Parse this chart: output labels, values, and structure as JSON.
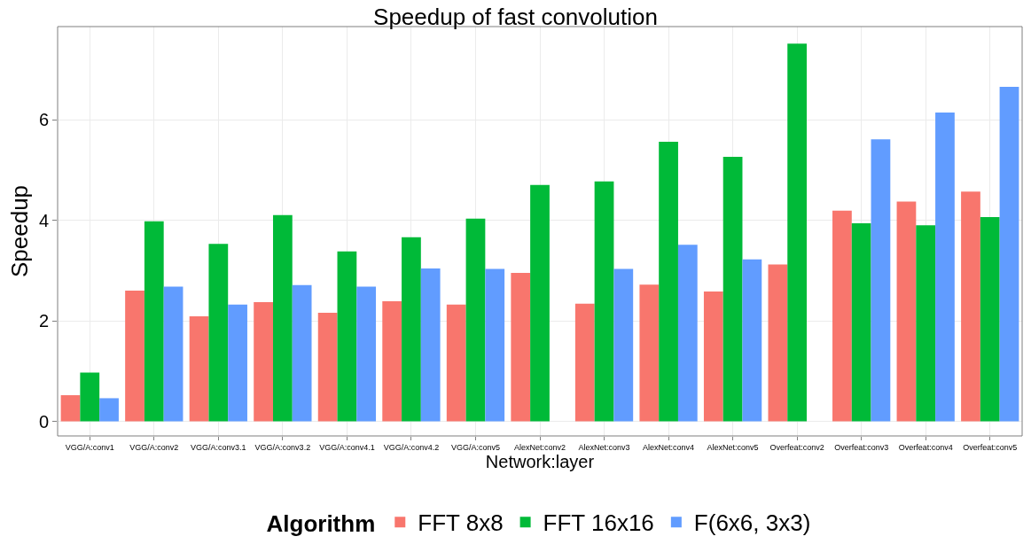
{
  "chart_data": {
    "type": "bar",
    "title": "Speedup of fast convolution",
    "xlabel": "Network:layer",
    "ylabel": "Speedup",
    "legend_title": "Algorithm",
    "categories": [
      "VGG/A:conv1",
      "VGG/A:conv2",
      "VGG/A:conv3.1",
      "VGG/A:conv3.2",
      "VGG/A:conv4.1",
      "VGG/A:conv4.2",
      "VGG/A:conv5",
      "AlexNet:conv2",
      "AlexNet:conv3",
      "AlexNet:conv4",
      "AlexNet:conv5",
      "Overfeat:conv2",
      "Overfeat:conv3",
      "Overfeat:conv4",
      "Overfeat:conv5"
    ],
    "series": [
      {
        "name": "FFT 8x8",
        "color": "#f8766d",
        "values": [
          0.52,
          2.6,
          2.09,
          2.37,
          2.16,
          2.39,
          2.32,
          2.95,
          2.34,
          2.72,
          2.58,
          3.12,
          4.19,
          4.37,
          4.57
        ]
      },
      {
        "name": "FFT 16x16",
        "color": "#00ba38",
        "values": [
          0.97,
          3.98,
          3.53,
          4.1,
          3.38,
          3.66,
          4.03,
          4.7,
          4.77,
          5.56,
          5.26,
          7.51,
          3.94,
          3.9,
          4.06
        ]
      },
      {
        "name": "F(6x6, 3x3)",
        "color": "#619cff",
        "values": [
          0.46,
          2.68,
          2.32,
          2.71,
          2.68,
          3.04,
          3.03,
          null,
          3.03,
          3.51,
          3.22,
          null,
          5.61,
          6.14,
          6.65
        ]
      }
    ],
    "ylim": [
      -0.29,
      7.85
    ],
    "yticks": [
      0,
      2,
      4,
      6
    ],
    "grid": true,
    "legend": "bottom"
  }
}
